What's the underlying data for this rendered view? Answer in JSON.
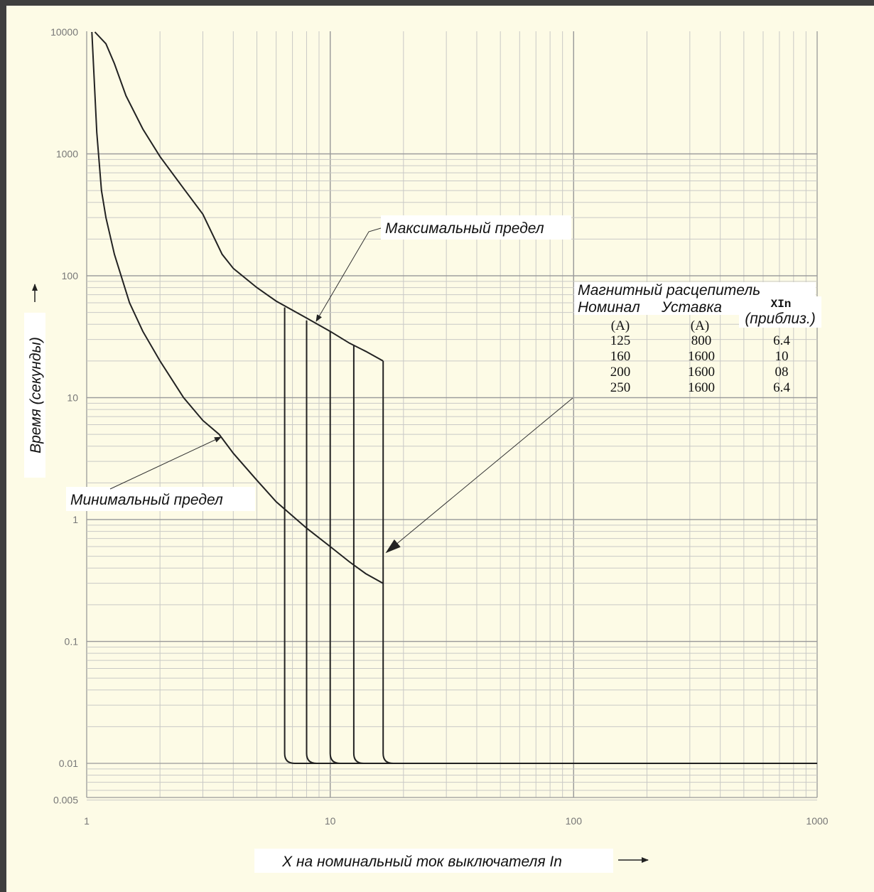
{
  "chart_data": {
    "type": "line",
    "x_scale": "log",
    "y_scale": "log",
    "xlim": [
      1,
      1000
    ],
    "ylim": [
      0.005,
      10000
    ],
    "xlabel": "X на номинальный ток выключателя In",
    "ylabel": "Время (секунды)",
    "x_ticks": [
      "1",
      "10",
      "100",
      "1000"
    ],
    "y_ticks": [
      "10000",
      "1000",
      "100",
      "10",
      "1",
      "0.1",
      "0.01",
      "0.005"
    ],
    "grid": true,
    "series": [
      {
        "name": "Максимальный предел",
        "x": [
          1.08,
          1.2,
          1.3,
          1.45,
          1.7,
          2.0,
          2.5,
          3.0,
          3.6,
          4.0,
          5.0,
          6.0,
          8.0,
          10.0,
          12.0,
          14.0,
          16.5
        ],
        "y": [
          10000,
          8000,
          5500,
          3000,
          1600,
          950,
          520,
          320,
          150,
          115,
          80,
          62,
          45,
          35,
          28,
          24,
          20
        ]
      },
      {
        "name": "Минимальный предел",
        "x": [
          1.05,
          1.1,
          1.15,
          1.2,
          1.3,
          1.5,
          1.7,
          2.0,
          2.5,
          3.0,
          3.5,
          4.0,
          5.0,
          6.0,
          8.0,
          10.0,
          12.0,
          14.0,
          16.5
        ],
        "y": [
          10000,
          1500,
          500,
          300,
          150,
          60,
          35,
          20,
          10,
          6.5,
          5.0,
          3.5,
          2.1,
          1.4,
          0.85,
          0.6,
          0.45,
          0.36,
          0.3
        ]
      }
    ],
    "magnetic_trips": [
      {
        "x": 6.5,
        "top": 55
      },
      {
        "x": 8.0,
        "top": 43
      },
      {
        "x": 10.0,
        "top": 35
      },
      {
        "x": 12.5,
        "top": 27
      },
      {
        "x": 16.5,
        "top": 20
      }
    ],
    "instantaneous_time": 0.01,
    "annotations": {
      "max_limit": "Максимальный предел",
      "min_limit": "Минимальный предел"
    },
    "table": {
      "title": "Магнитный расцепитель",
      "headers": [
        "Номинал",
        "Уставка",
        "XIn"
      ],
      "header_sub": [
        "(A)",
        "(A)",
        "(приблиз.)"
      ],
      "rows": [
        [
          "125",
          "800",
          "6.4"
        ],
        [
          "160",
          "1600",
          "10"
        ],
        [
          "200",
          "1600",
          "08"
        ],
        [
          "250",
          "1600",
          "6.4"
        ]
      ]
    }
  }
}
